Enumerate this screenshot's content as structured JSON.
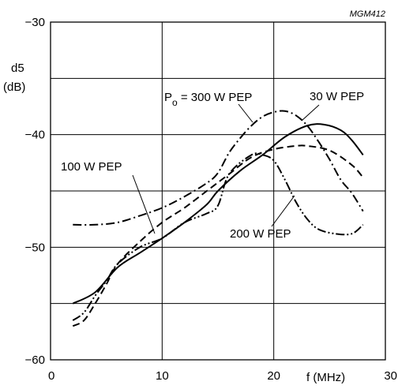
{
  "chart_data": {
    "type": "line",
    "figure_code": "MGM412",
    "xlabel": "f (MHz)",
    "ylabel_line1": "d5",
    "ylabel_line2": "(dB)",
    "xlim": [
      0,
      30
    ],
    "ylim": [
      -60,
      -30
    ],
    "xticks": [
      0,
      10,
      20,
      30
    ],
    "yticks": [
      -60,
      -50,
      -40,
      -30
    ],
    "xtick_labels": [
      "0",
      "10",
      "20",
      "30"
    ],
    "ytick_labels": [
      "−60",
      "−50",
      "−40",
      "−30"
    ],
    "grid": true,
    "series": [
      {
        "name": "30 W PEP",
        "style": "solid",
        "x": [
          2,
          4,
          6,
          8,
          10,
          12,
          14,
          15,
          17,
          19,
          21,
          23,
          24.5,
          26,
          27,
          28
        ],
        "y": [
          -55,
          -54,
          -51.8,
          -50.5,
          -49.2,
          -47.8,
          -46.2,
          -45,
          -43.2,
          -41.8,
          -40.2,
          -39.2,
          -39.1,
          -39.6,
          -40.5,
          -41.8
        ]
      },
      {
        "name": "100 W PEP",
        "style": "dashed",
        "x": [
          2,
          3,
          4,
          5,
          6,
          8,
          10,
          12,
          14,
          16,
          18,
          20,
          22,
          23,
          25,
          27,
          28
        ],
        "y": [
          -57,
          -56.5,
          -55,
          -53.3,
          -51.5,
          -49.5,
          -47.8,
          -46.5,
          -45,
          -43.5,
          -42,
          -41.3,
          -41,
          -41,
          -41.4,
          -42.7,
          -43.8
        ]
      },
      {
        "name": "200 W PEP",
        "style": "dash-dot-dot",
        "x": [
          2,
          3,
          4,
          5,
          6,
          8,
          10,
          12,
          14,
          15,
          16,
          18,
          19,
          20,
          21,
          22,
          23,
          24,
          25.5,
          27,
          28
        ],
        "y": [
          -56.5,
          -55.8,
          -54.3,
          -53,
          -51.5,
          -50,
          -49.2,
          -47.8,
          -47,
          -46.3,
          -43.5,
          -41.8,
          -41.8,
          -42.3,
          -44,
          -46,
          -47.5,
          -48.4,
          -48.8,
          -48.8,
          -48
        ]
      },
      {
        "name": "300 W PEP",
        "style": "dash-dot",
        "x": [
          2,
          4,
          6,
          8,
          10,
          12,
          14,
          15,
          16,
          17,
          18,
          19,
          20,
          21,
          22,
          23,
          24,
          25,
          26,
          27,
          28
        ],
        "y": [
          -48,
          -48,
          -47.8,
          -47.2,
          -46.5,
          -45.5,
          -44.3,
          -43.4,
          -41.6,
          -40.3,
          -39.2,
          -38.4,
          -38,
          -37.9,
          -38.3,
          -39.2,
          -40.6,
          -42.2,
          -44,
          -45.2,
          -46.8
        ]
      }
    ],
    "annotations": {
      "p300_main": "P",
      "p300_sub": "o",
      "p300_rest": " = 300 W PEP",
      "w30": "30 W PEP",
      "w100": "100 W PEP",
      "w200": "200 W PEP"
    }
  }
}
